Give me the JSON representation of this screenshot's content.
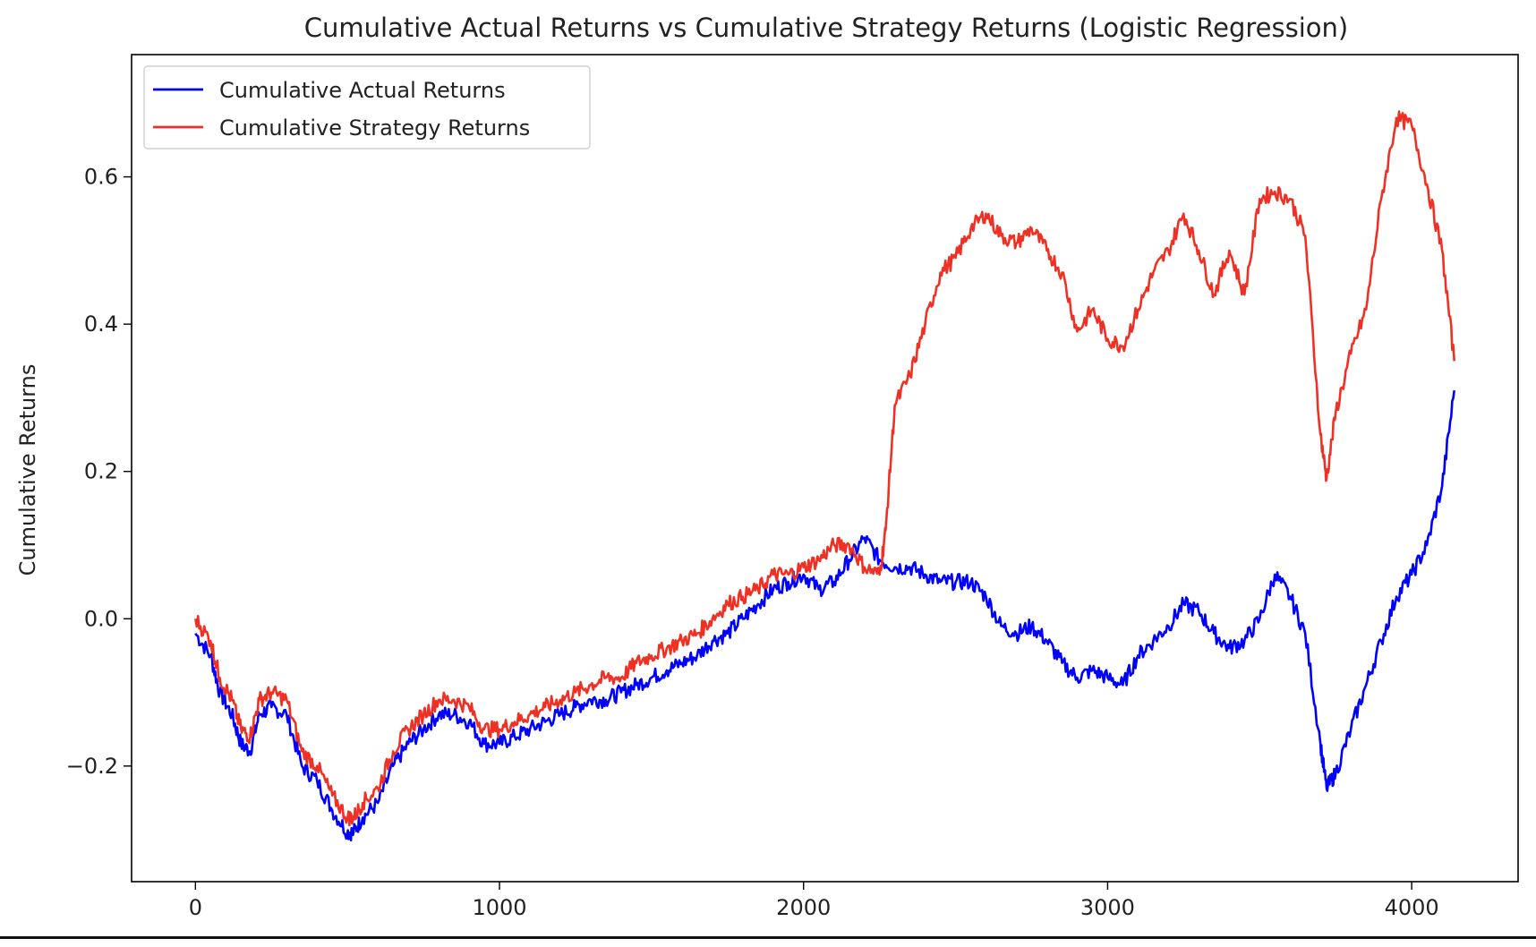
{
  "chart_data": {
    "type": "line",
    "title": "Cumulative Actual Returns vs Cumulative Strategy Returns (Logistic Regression)",
    "xlabel": "",
    "ylabel": "Cumulative Returns",
    "xlim": [
      -210,
      4350
    ],
    "ylim": [
      -0.357,
      0.766
    ],
    "x_ticks": [
      0,
      1000,
      2000,
      3000,
      4000
    ],
    "x_tick_labels": [
      "0",
      "1000",
      "2000",
      "3000",
      "4000"
    ],
    "y_ticks": [
      -0.2,
      0.0,
      0.2,
      0.4,
      0.6
    ],
    "y_tick_labels": [
      "−0.2",
      "0.0",
      "0.2",
      "0.4",
      "0.6"
    ],
    "grid": false,
    "legend_placement": "top-left",
    "series": [
      {
        "name": "Cumulative Actual Returns",
        "color": "#0000ff",
        "x": [
          0,
          50,
          80,
          120,
          150,
          180,
          210,
          250,
          300,
          350,
          400,
          450,
          500,
          520,
          550,
          600,
          650,
          700,
          750,
          800,
          850,
          900,
          950,
          1000,
          1050,
          1100,
          1150,
          1200,
          1250,
          1300,
          1350,
          1400,
          1450,
          1500,
          1550,
          1600,
          1650,
          1700,
          1750,
          1800,
          1850,
          1900,
          1950,
          2000,
          2050,
          2100,
          2150,
          2200,
          2250,
          2300,
          2350,
          2400,
          2450,
          2500,
          2550,
          2600,
          2650,
          2700,
          2750,
          2800,
          2850,
          2900,
          2950,
          3000,
          3050,
          3100,
          3150,
          3200,
          3250,
          3300,
          3350,
          3400,
          3450,
          3500,
          3550,
          3600,
          3650,
          3700,
          3720,
          3750,
          3800,
          3850,
          3900,
          3950,
          4000,
          4050,
          4100,
          4140
        ],
        "y": [
          -0.02,
          -0.05,
          -0.1,
          -0.13,
          -0.17,
          -0.18,
          -0.13,
          -0.12,
          -0.13,
          -0.2,
          -0.22,
          -0.26,
          -0.29,
          -0.29,
          -0.27,
          -0.25,
          -0.2,
          -0.17,
          -0.15,
          -0.13,
          -0.13,
          -0.14,
          -0.17,
          -0.17,
          -0.16,
          -0.15,
          -0.14,
          -0.13,
          -0.12,
          -0.11,
          -0.11,
          -0.1,
          -0.09,
          -0.08,
          -0.07,
          -0.06,
          -0.05,
          -0.03,
          -0.02,
          0.0,
          0.02,
          0.04,
          0.05,
          0.06,
          0.04,
          0.05,
          0.08,
          0.11,
          0.08,
          0.07,
          0.07,
          0.06,
          0.05,
          0.05,
          0.05,
          0.03,
          -0.01,
          -0.02,
          -0.01,
          -0.03,
          -0.06,
          -0.08,
          -0.07,
          -0.08,
          -0.09,
          -0.05,
          -0.03,
          -0.01,
          0.02,
          0.01,
          -0.02,
          -0.04,
          -0.03,
          0.0,
          0.06,
          0.03,
          -0.02,
          -0.17,
          -0.23,
          -0.21,
          -0.15,
          -0.09,
          -0.03,
          0.03,
          0.06,
          0.1,
          0.18,
          0.31
        ]
      },
      {
        "name": "Cumulative Strategy Returns",
        "color": "#ee3124",
        "x": [
          0,
          50,
          80,
          120,
          150,
          180,
          210,
          250,
          300,
          350,
          400,
          450,
          500,
          520,
          550,
          600,
          650,
          700,
          750,
          800,
          850,
          900,
          950,
          1000,
          1050,
          1100,
          1150,
          1200,
          1250,
          1300,
          1350,
          1400,
          1450,
          1500,
          1550,
          1600,
          1650,
          1700,
          1750,
          1800,
          1850,
          1900,
          1950,
          2000,
          2050,
          2100,
          2150,
          2200,
          2250,
          2270,
          2300,
          2350,
          2400,
          2450,
          2500,
          2550,
          2600,
          2650,
          2700,
          2750,
          2800,
          2850,
          2900,
          2950,
          3000,
          3050,
          3100,
          3150,
          3200,
          3250,
          3300,
          3350,
          3400,
          3450,
          3500,
          3550,
          3600,
          3650,
          3700,
          3720,
          3750,
          3800,
          3850,
          3900,
          3950,
          4000,
          4050,
          4100,
          4140
        ],
        "y": [
          0.0,
          -0.03,
          -0.08,
          -0.11,
          -0.15,
          -0.16,
          -0.11,
          -0.1,
          -0.11,
          -0.18,
          -0.2,
          -0.24,
          -0.27,
          -0.27,
          -0.25,
          -0.23,
          -0.18,
          -0.15,
          -0.13,
          -0.11,
          -0.11,
          -0.12,
          -0.15,
          -0.15,
          -0.14,
          -0.13,
          -0.12,
          -0.11,
          -0.1,
          -0.09,
          -0.08,
          -0.08,
          -0.06,
          -0.05,
          -0.04,
          -0.03,
          -0.02,
          0.0,
          0.02,
          0.03,
          0.04,
          0.06,
          0.06,
          0.07,
          0.08,
          0.1,
          0.1,
          0.07,
          0.06,
          0.12,
          0.29,
          0.33,
          0.4,
          0.47,
          0.49,
          0.53,
          0.55,
          0.52,
          0.51,
          0.53,
          0.5,
          0.47,
          0.39,
          0.42,
          0.38,
          0.37,
          0.42,
          0.47,
          0.5,
          0.55,
          0.5,
          0.44,
          0.5,
          0.44,
          0.57,
          0.58,
          0.57,
          0.52,
          0.25,
          0.19,
          0.28,
          0.36,
          0.42,
          0.57,
          0.68,
          0.67,
          0.59,
          0.5,
          0.35
        ]
      }
    ]
  }
}
